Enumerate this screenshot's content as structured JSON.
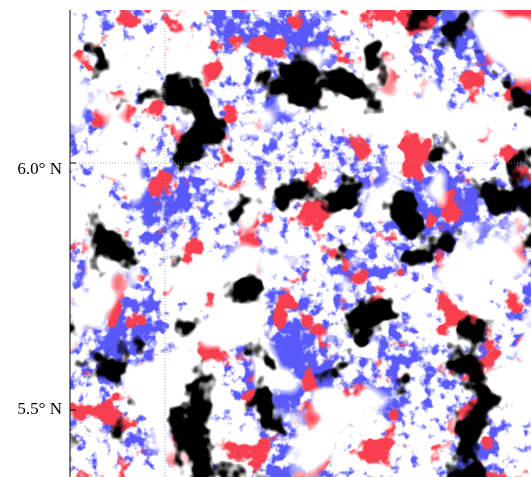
{
  "map": {
    "latitude_labels": [
      "6.0° N",
      "5.5° N"
    ]
  }
}
